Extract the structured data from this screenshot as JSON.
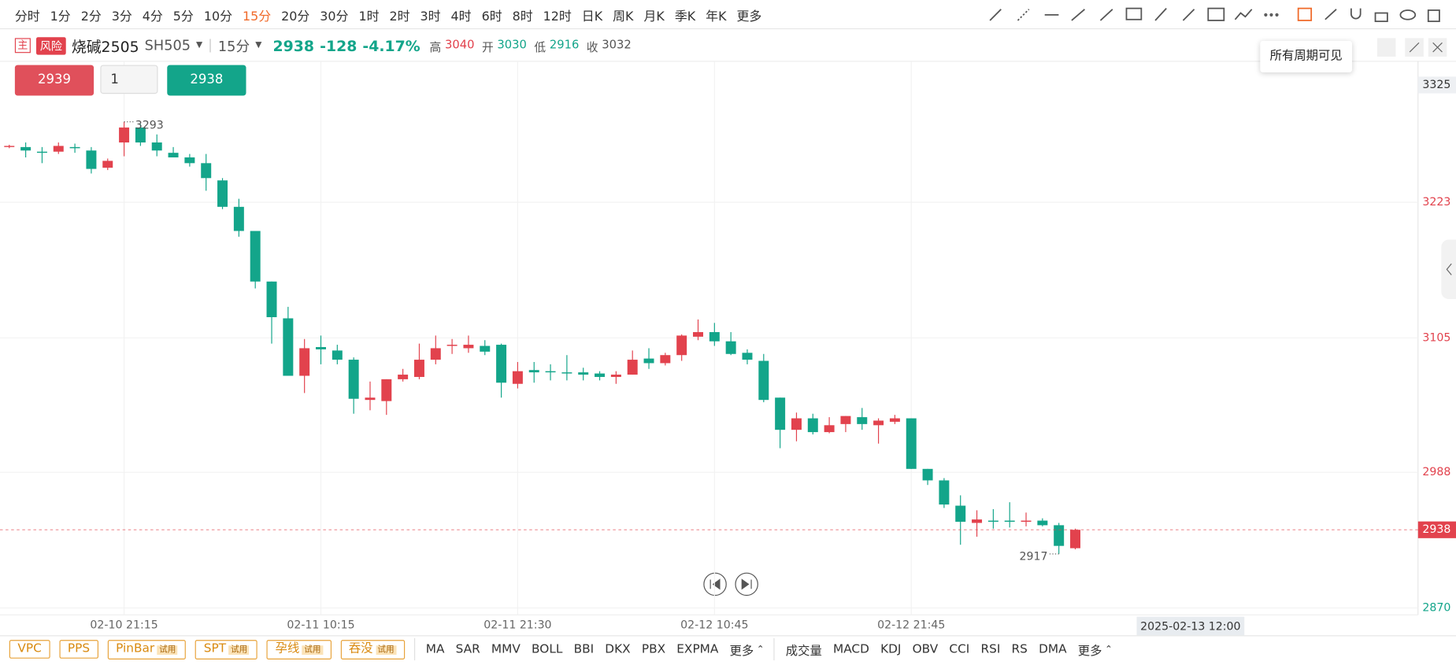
{
  "toolbar": {
    "periods": [
      "分时",
      "1分",
      "2分",
      "3分",
      "4分",
      "5分",
      "10分",
      "15分",
      "20分",
      "30分",
      "1时",
      "2时",
      "3时",
      "4时",
      "6时",
      "8时",
      "12时",
      "日K",
      "周K",
      "月K",
      "季K",
      "年K",
      "更多"
    ],
    "active_index": 7
  },
  "instrument": {
    "tag": "主",
    "risk": "风险",
    "name": "烧碱2505",
    "code": "SH505",
    "period": "15分",
    "price": "2938",
    "change": "-128",
    "change_pct": "-4.17%",
    "stats": [
      {
        "label": "高",
        "value": "3040",
        "color": "#e2424d"
      },
      {
        "label": "开",
        "value": "3030",
        "color": "#13a58a"
      },
      {
        "label": "低",
        "value": "2916",
        "color": "#13a58a"
      },
      {
        "label": "收",
        "value": "3032",
        "color": "#555555"
      }
    ]
  },
  "order": {
    "sell": "2939",
    "qty": "1",
    "buy": "2938"
  },
  "tooltip": "所有周期可见",
  "bottom": {
    "patterns": [
      {
        "name": "VPC"
      },
      {
        "name": "PPS"
      },
      {
        "name": "PinBar",
        "badge": "试用"
      },
      {
        "name": "SPT",
        "badge": "试用"
      },
      {
        "name": "孕线",
        "badge": "试用"
      },
      {
        "name": "吞没",
        "badge": "试用"
      }
    ],
    "main_indicators": [
      "MA",
      "SAR",
      "MMV",
      "BOLL",
      "BBI",
      "DKX",
      "PBX",
      "EXPMA"
    ],
    "main_more": "更多",
    "sub_indicators": [
      "成交量",
      "MACD",
      "KDJ",
      "OBV",
      "CCI",
      "RSI",
      "RS",
      "DMA"
    ],
    "sub_more": "更多"
  },
  "chart_data": {
    "type": "candlestick",
    "up_color": "#e2424d",
    "down_color": "#13a58a",
    "open": [
      3272,
      3271,
      3267,
      3267,
      3271,
      3268,
      3253,
      3275,
      3288,
      3275,
      3266,
      3262,
      3257,
      3242,
      3219,
      3198,
      3154,
      3122,
      3072,
      3097,
      3094,
      3086,
      3051,
      3050,
      3069,
      3071,
      3086,
      3098,
      3096,
      3098,
      3099,
      3065,
      3077,
      3076,
      3075,
      3075,
      3074,
      3071,
      3073,
      3087,
      3083,
      3090,
      3106,
      3110,
      3102,
      3092,
      3085,
      3053,
      3025,
      3035,
      3023,
      3030,
      3036,
      3029,
      3032,
      3035,
      2991,
      2981,
      2959,
      2944,
      2946,
      2946,
      2945,
      2946,
      2942,
      2922
    ],
    "high": [
      3273,
      3275,
      3271,
      3275,
      3274,
      3271,
      3261,
      3293,
      3291,
      3282,
      3271,
      3265,
      3265,
      3244,
      3226,
      3198,
      3154,
      3132,
      3104,
      3107,
      3099,
      3088,
      3067,
      3069,
      3078,
      3100,
      3107,
      3104,
      3107,
      3103,
      3100,
      3084,
      3084,
      3082,
      3090,
      3079,
      3076,
      3076,
      3094,
      3096,
      3092,
      3108,
      3121,
      3118,
      3110,
      3095,
      3091,
      3053,
      3040,
      3039,
      3036,
      3037,
      3044,
      3035,
      3038,
      3035,
      2991,
      2983,
      2968,
      2955,
      2956,
      2962,
      2953,
      2948,
      2944,
      2939
    ],
    "low": [
      3270,
      3262,
      3257,
      3265,
      3266,
      3248,
      3251,
      3263,
      3272,
      3263,
      3262,
      3254,
      3233,
      3217,
      3193,
      3148,
      3100,
      3072,
      3057,
      3082,
      3082,
      3039,
      3042,
      3038,
      3067,
      3069,
      3082,
      3091,
      3092,
      3090,
      3053,
      3061,
      3066,
      3068,
      3068,
      3068,
      3068,
      3065,
      3073,
      3078,
      3081,
      3085,
      3103,
      3098,
      3090,
      3082,
      3049,
      3009,
      3015,
      3021,
      3022,
      3023,
      3025,
      3013,
      3030,
      2991,
      2977,
      2957,
      2925,
      2932,
      2939,
      2940,
      2941,
      2941,
      2917,
      2921
    ],
    "close": [
      3272,
      3268,
      3266,
      3272,
      3270,
      3252,
      3259,
      3288,
      3275,
      3268,
      3262,
      3257,
      3244,
      3219,
      3198,
      3154,
      3123,
      3072,
      3096,
      3095,
      3086,
      3052,
      3053,
      3069,
      3073,
      3086,
      3096,
      3099,
      3099,
      3093,
      3066,
      3076,
      3075,
      3075,
      3074,
      3073,
      3071,
      3073,
      3086,
      3083,
      3090,
      3107,
      3110,
      3102,
      3091,
      3086,
      3051,
      3025,
      3035,
      3023,
      3029,
      3037,
      3030,
      3033,
      3035,
      2991,
      2981,
      2960,
      2945,
      2947,
      2945,
      2945,
      2946,
      2942,
      2924,
      2938
    ],
    "ylim": [
      2864,
      3344
    ],
    "yticks": [
      2870,
      2988,
      3105,
      3223
    ],
    "xticks": [
      {
        "value": 7,
        "label": "02-10 21:15"
      },
      {
        "value": 19,
        "label": "02-11 10:15"
      },
      {
        "value": 31,
        "label": "02-11 21:30"
      },
      {
        "value": 43,
        "label": "02-12 10:45"
      },
      {
        "value": 55,
        "label": "02-12 21:45"
      }
    ],
    "grid": true,
    "last_price": 2938,
    "high_label": 3293,
    "low_label": 2917,
    "crosshair": {
      "y": 3325,
      "x_label": "2025-02-13 12:00"
    }
  }
}
